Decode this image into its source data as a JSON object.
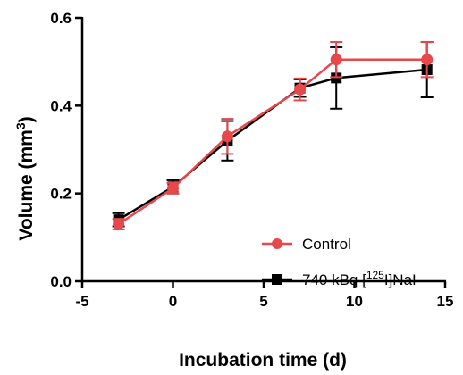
{
  "chart_data": {
    "type": "line",
    "xlabel": "Incubation time (d)",
    "ylabel": {
      "base": "Volume (mm",
      "sup": "3",
      "end": ")"
    },
    "xlim": [
      -5,
      15
    ],
    "ylim": [
      0.0,
      0.6
    ],
    "xticks": [
      -5,
      0,
      5,
      10,
      15
    ],
    "xtick_labels": [
      "-5",
      "0",
      "5",
      "10",
      "15"
    ],
    "yticks": [
      0.0,
      0.2,
      0.4,
      0.6
    ],
    "ytick_labels": [
      "0.0",
      "0.2",
      "0.4",
      "0.6"
    ],
    "grid": false,
    "legend_position": "bottom-right",
    "series": [
      {
        "name": "740 kBq [125I]NaI",
        "legend": {
          "pre": "740 kBq [",
          "sup": "125",
          "post": "I]NaI"
        },
        "color": "#000000",
        "marker": "square",
        "x": [
          -3,
          0,
          3,
          7,
          9,
          14
        ],
        "y": [
          0.14,
          0.215,
          0.32,
          0.44,
          0.463,
          0.482
        ],
        "err": [
          0.015,
          0.015,
          0.045,
          0.02,
          0.07,
          0.063
        ]
      },
      {
        "name": "Control",
        "legend": {
          "pre": "Control",
          "sup": "",
          "post": ""
        },
        "color": "#e8474b",
        "marker": "circle",
        "x": [
          -3,
          0,
          3,
          7,
          9,
          14
        ],
        "y": [
          0.13,
          0.212,
          0.33,
          0.437,
          0.505,
          0.505
        ],
        "err": [
          0.012,
          0.012,
          0.04,
          0.025,
          0.04,
          0.04
        ]
      }
    ]
  }
}
